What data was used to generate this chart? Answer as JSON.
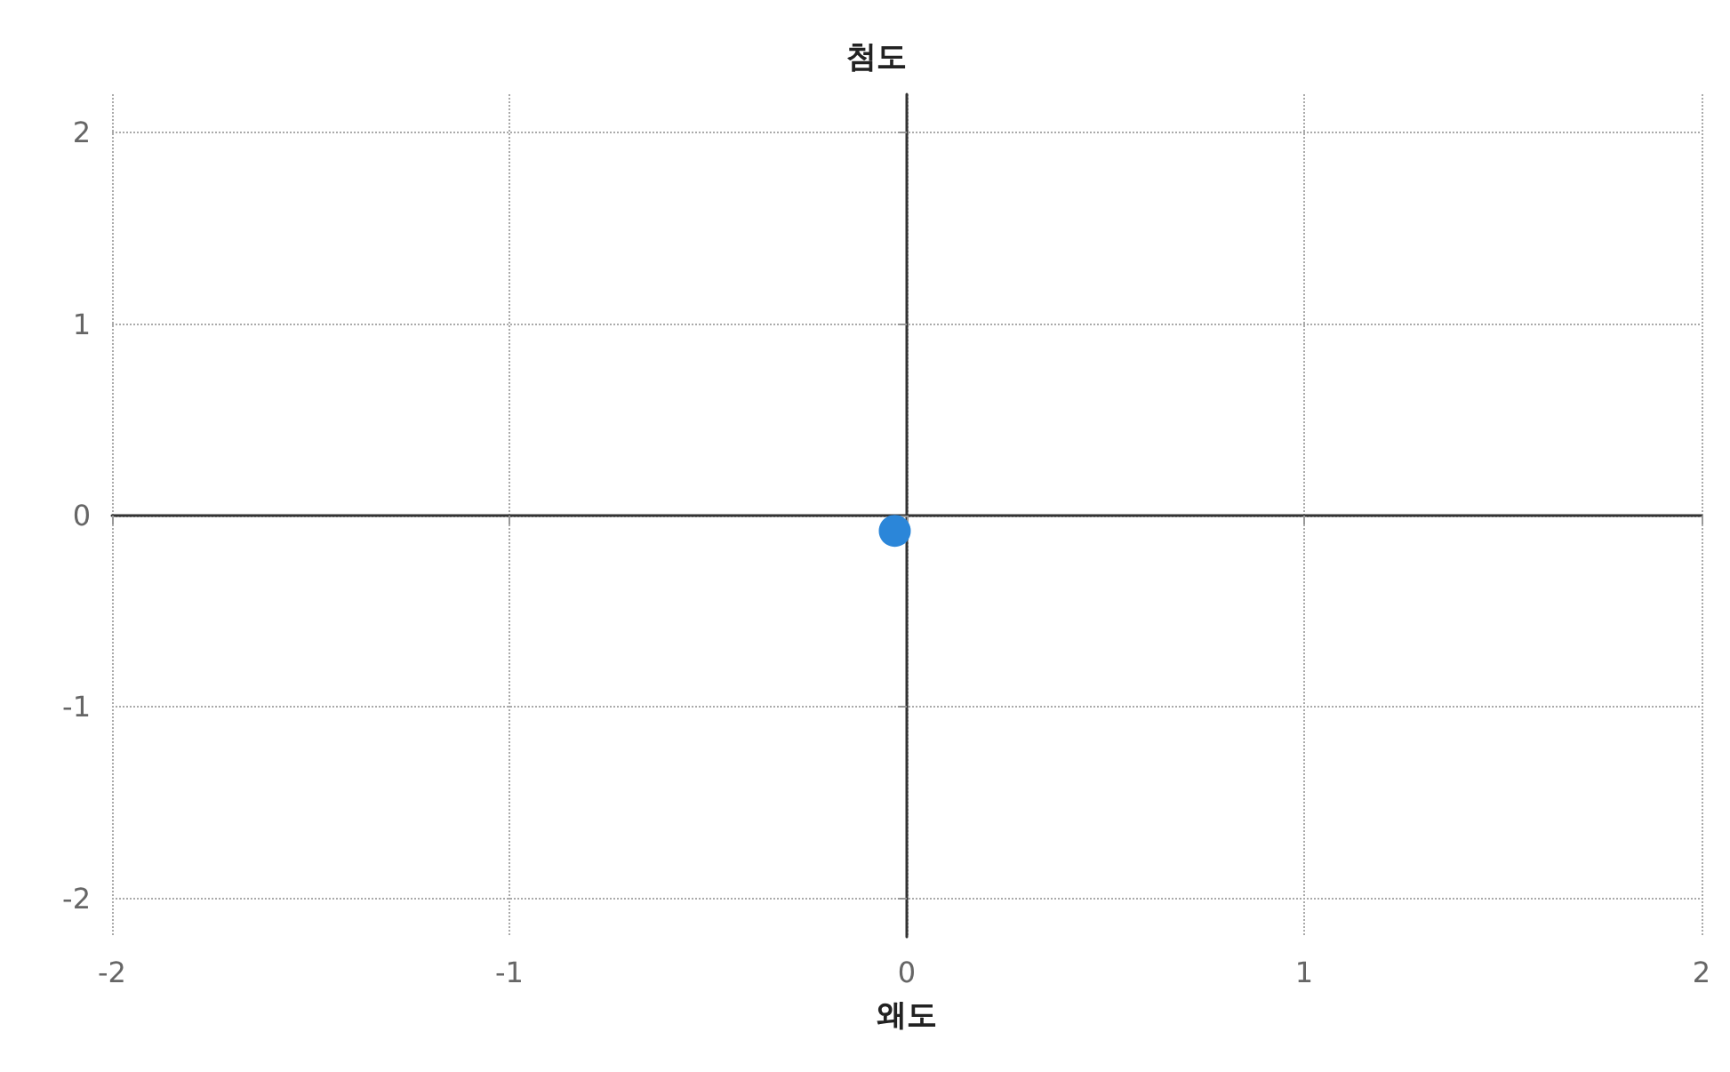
{
  "chart_data": {
    "type": "scatter",
    "xlabel": "왜도",
    "ylabel": "첨도",
    "x": [
      -0.03
    ],
    "series": [
      {
        "color": "#2b86d9",
        "values": [
          -0.08
        ]
      }
    ],
    "xlim": [
      -2,
      2
    ],
    "xticks": [
      -2,
      -1,
      0,
      1,
      2
    ],
    "ylim": [
      -2.2,
      2.2
    ],
    "yticks": [
      -2,
      -1,
      0,
      1,
      2
    ],
    "grid": true,
    "marker": "circle"
  }
}
